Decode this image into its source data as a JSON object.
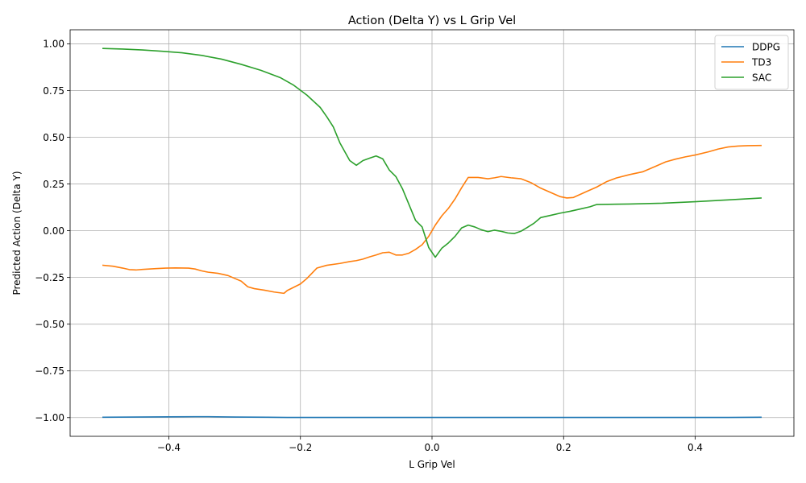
{
  "chart_data": {
    "type": "line",
    "title": "Action (Delta Y) vs L Grip Vel",
    "xlabel": "L Grip Vel",
    "ylabel": "Predicted Action (Delta Y)",
    "xlim": [
      -0.55,
      0.55
    ],
    "ylim": [
      -1.1,
      1.075
    ],
    "xticks": [
      -0.4,
      -0.2,
      0.0,
      0.2,
      0.4
    ],
    "xtick_labels": [
      "−0.4",
      "−0.2",
      "0.0",
      "0.2",
      "0.4"
    ],
    "yticks": [
      1.0,
      0.75,
      0.5,
      0.25,
      0.0,
      -0.25,
      -0.5,
      -0.75,
      -1.0
    ],
    "ytick_labels": [
      "1.00",
      "0.75",
      "0.50",
      "0.25",
      "0.00",
      "−0.25",
      "−0.50",
      "−0.75",
      "−1.00"
    ],
    "grid": true,
    "legend_position": "top-right",
    "series": [
      {
        "name": "DDPG",
        "color": "#1f77b4",
        "x": [
          -0.5,
          -0.45,
          -0.4,
          -0.36,
          -0.34,
          -0.3,
          -0.25,
          -0.22,
          -0.1,
          0.0,
          0.1,
          0.2,
          0.3,
          0.4,
          0.45,
          0.5
        ],
        "y": [
          -0.998,
          -0.997,
          -0.996,
          -0.995,
          -0.995,
          -0.997,
          -0.998,
          -0.999,
          -0.999,
          -0.999,
          -0.999,
          -0.999,
          -0.999,
          -0.999,
          -0.999,
          -0.998
        ]
      },
      {
        "name": "TD3",
        "color": "#ff7f0e",
        "x": [
          -0.5,
          -0.485,
          -0.47,
          -0.46,
          -0.45,
          -0.44,
          -0.42,
          -0.405,
          -0.39,
          -0.37,
          -0.36,
          -0.35,
          -0.34,
          -0.325,
          -0.31,
          -0.29,
          -0.28,
          -0.27,
          -0.255,
          -0.24,
          -0.225,
          -0.22,
          -0.2,
          -0.19,
          -0.175,
          -0.16,
          -0.14,
          -0.125,
          -0.115,
          -0.105,
          -0.095,
          -0.085,
          -0.075,
          -0.065,
          -0.055,
          -0.045,
          -0.035,
          -0.025,
          -0.015,
          -0.005,
          0.005,
          0.015,
          0.025,
          0.035,
          0.045,
          0.055,
          0.07,
          0.085,
          0.095,
          0.105,
          0.12,
          0.135,
          0.15,
          0.165,
          0.18,
          0.195,
          0.205,
          0.215,
          0.235,
          0.25,
          0.265,
          0.28,
          0.3,
          0.32,
          0.34,
          0.355,
          0.37,
          0.385,
          0.4,
          0.42,
          0.435,
          0.45,
          0.465,
          0.48,
          0.5
        ],
        "y": [
          -0.185,
          -0.19,
          -0.2,
          -0.208,
          -0.21,
          -0.207,
          -0.203,
          -0.2,
          -0.199,
          -0.2,
          -0.205,
          -0.215,
          -0.222,
          -0.228,
          -0.24,
          -0.27,
          -0.3,
          -0.31,
          -0.318,
          -0.328,
          -0.335,
          -0.32,
          -0.285,
          -0.255,
          -0.2,
          -0.185,
          -0.175,
          -0.165,
          -0.16,
          -0.152,
          -0.14,
          -0.13,
          -0.118,
          -0.115,
          -0.13,
          -0.13,
          -0.12,
          -0.1,
          -0.075,
          -0.03,
          0.03,
          0.08,
          0.12,
          0.17,
          0.23,
          0.285,
          0.285,
          0.278,
          0.283,
          0.29,
          0.283,
          0.278,
          0.258,
          0.228,
          0.205,
          0.182,
          0.175,
          0.178,
          0.21,
          0.233,
          0.262,
          0.282,
          0.3,
          0.315,
          0.345,
          0.368,
          0.383,
          0.395,
          0.405,
          0.422,
          0.437,
          0.448,
          0.453,
          0.455,
          0.456
        ]
      },
      {
        "name": "SAC",
        "color": "#2ca02c",
        "x": [
          -0.5,
          -0.47,
          -0.44,
          -0.41,
          -0.38,
          -0.35,
          -0.32,
          -0.29,
          -0.26,
          -0.23,
          -0.21,
          -0.19,
          -0.17,
          -0.16,
          -0.15,
          -0.14,
          -0.125,
          -0.115,
          -0.105,
          -0.095,
          -0.085,
          -0.075,
          -0.065,
          -0.055,
          -0.045,
          -0.035,
          -0.025,
          -0.015,
          -0.005,
          0.005,
          0.015,
          0.025,
          0.035,
          0.045,
          0.055,
          0.065,
          0.075,
          0.085,
          0.095,
          0.105,
          0.115,
          0.125,
          0.135,
          0.145,
          0.155,
          0.165,
          0.18,
          0.195,
          0.21,
          0.225,
          0.24,
          0.25,
          0.3,
          0.35,
          0.4,
          0.45,
          0.5
        ],
        "y": [
          0.975,
          0.972,
          0.967,
          0.96,
          0.952,
          0.938,
          0.918,
          0.89,
          0.858,
          0.818,
          0.778,
          0.725,
          0.66,
          0.61,
          0.555,
          0.47,
          0.375,
          0.35,
          0.375,
          0.388,
          0.4,
          0.385,
          0.325,
          0.29,
          0.225,
          0.14,
          0.055,
          0.02,
          -0.09,
          -0.142,
          -0.093,
          -0.065,
          -0.03,
          0.015,
          0.03,
          0.02,
          0.005,
          -0.005,
          0.003,
          -0.003,
          -0.012,
          -0.015,
          -0.003,
          0.018,
          0.04,
          0.07,
          0.082,
          0.094,
          0.104,
          0.116,
          0.128,
          0.14,
          0.143,
          0.147,
          0.155,
          0.165,
          0.175
        ]
      }
    ]
  }
}
